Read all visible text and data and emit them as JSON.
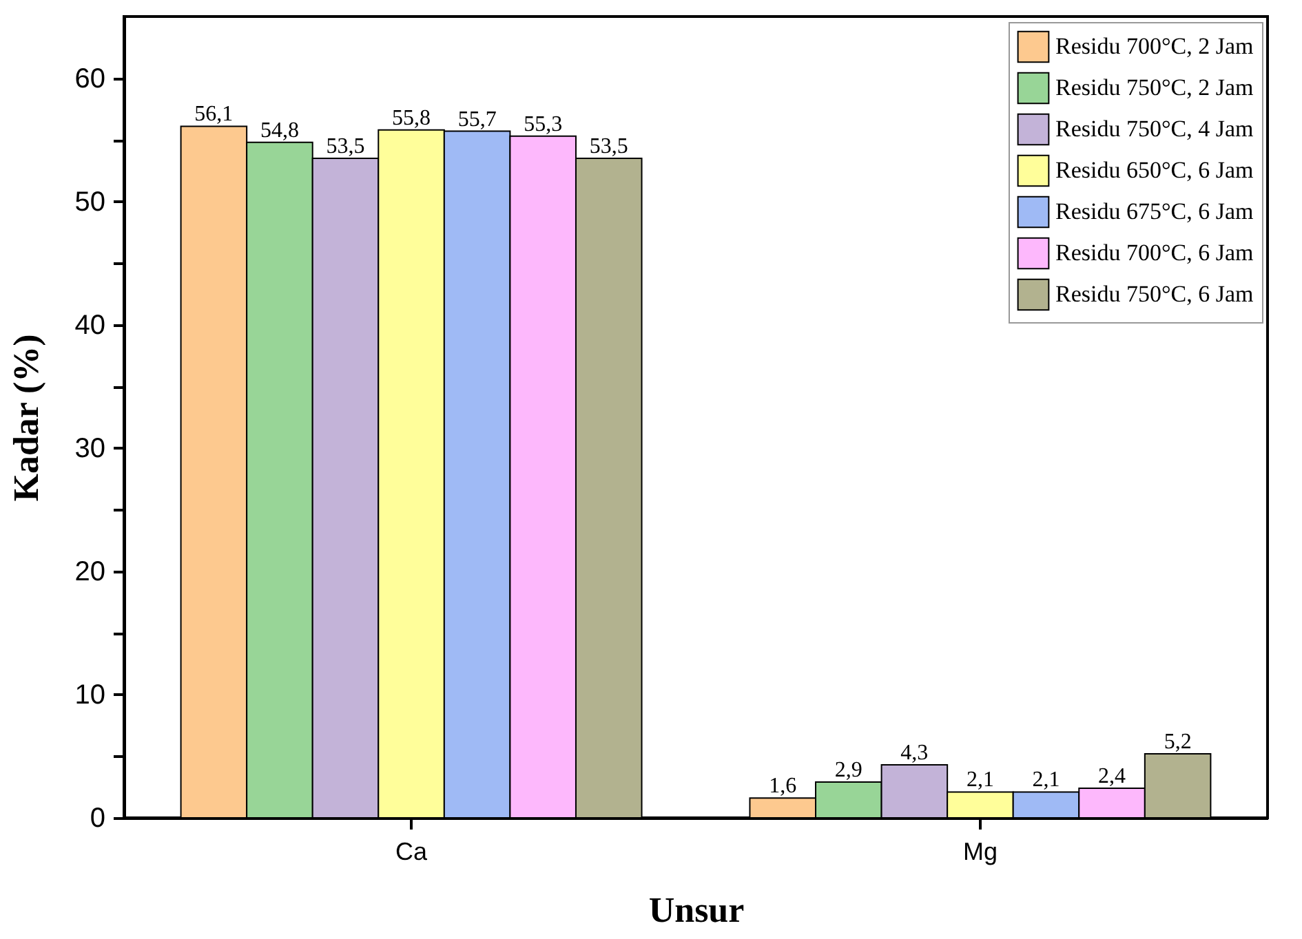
{
  "chart_data": {
    "type": "bar",
    "xlabel": "Unsur",
    "ylabel": "Kadar (%)",
    "categories": [
      "Ca",
      "Mg"
    ],
    "series": [
      {
        "name": "Residu 700°C, 2 Jam",
        "color": "#fdc98f",
        "values": [
          56.1,
          1.6
        ],
        "value_labels": [
          "56,1",
          "1,6"
        ]
      },
      {
        "name": "Residu 750°C, 2 Jam",
        "color": "#98d597",
        "values": [
          54.8,
          2.9
        ],
        "value_labels": [
          "54,8",
          "2,9"
        ]
      },
      {
        "name": "Residu 750°C, 4 Jam",
        "color": "#c3b3d8",
        "values": [
          53.5,
          4.3
        ],
        "value_labels": [
          "53,5",
          "4,3"
        ]
      },
      {
        "name": "Residu 650°C, 6 Jam",
        "color": "#fffe9a",
        "values": [
          55.8,
          2.1
        ],
        "value_labels": [
          "55,8",
          "2,1"
        ]
      },
      {
        "name": "Residu 675°C, 6 Jam",
        "color": "#9fbaf5",
        "values": [
          55.7,
          2.1
        ],
        "value_labels": [
          "55,7",
          "2,1"
        ]
      },
      {
        "name": "Residu 700°C, 6 Jam",
        "color": "#fdb8fc",
        "values": [
          55.3,
          2.4
        ],
        "value_labels": [
          "55,3",
          "2,4"
        ]
      },
      {
        "name": "Residu 750°C, 6 Jam",
        "color": "#b2b28f",
        "values": [
          53.5,
          5.2
        ],
        "value_labels": [
          "53,5",
          "5,2"
        ]
      }
    ],
    "ylim": [
      0,
      65
    ],
    "yticks": [
      0,
      {
        "value": 5,
        "label": null
      },
      10,
      {
        "value": 15,
        "label": null
      },
      20,
      {
        "value": 25,
        "label": null
      },
      30,
      {
        "value": 35,
        "label": null
      },
      40,
      {
        "value": 45,
        "label": null
      },
      50,
      {
        "value": 55,
        "label": null
      },
      60
    ],
    "grid": false,
    "legend": "top right"
  }
}
